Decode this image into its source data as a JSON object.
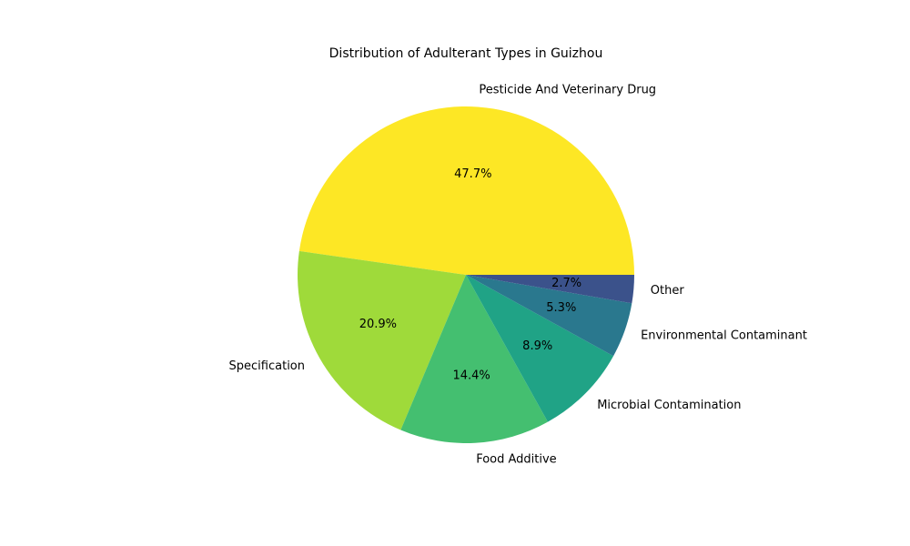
{
  "chart_data": {
    "type": "pie",
    "title": "Distribution of Adulterant Types in Guizhou",
    "start_angle": 0,
    "direction": "counterclockwise",
    "slices": [
      {
        "label": "Pesticide And Veterinary Drug",
        "value": 47.7,
        "pct_label": "47.7%",
        "color": "#fde725"
      },
      {
        "label": "Specification",
        "value": 20.9,
        "pct_label": "20.9%",
        "color": "#9fda3a"
      },
      {
        "label": "Food Additive",
        "value": 14.4,
        "pct_label": "14.4%",
        "color": "#44bf70"
      },
      {
        "label": "Microbial Contamination",
        "value": 8.9,
        "pct_label": "8.9%",
        "color": "#20a386"
      },
      {
        "label": "Environmental Contaminant",
        "value": 5.3,
        "pct_label": "5.3%",
        "color": "#2a788e"
      },
      {
        "label": "Other",
        "value": 2.7,
        "pct_label": "2.7%",
        "color": "#3b528b"
      }
    ]
  }
}
